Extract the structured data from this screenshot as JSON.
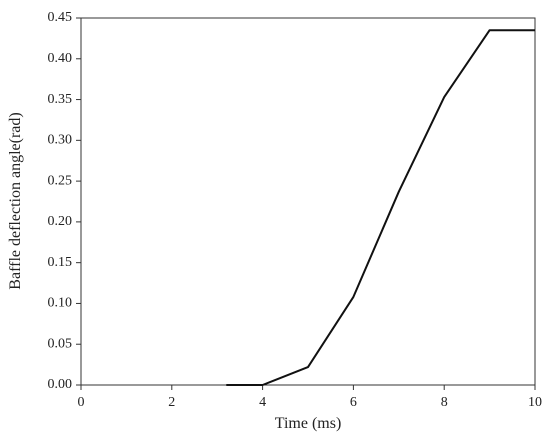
{
  "chart_data": {
    "type": "line",
    "title": "",
    "xlabel": "Time (ms)",
    "ylabel": "Baffle deflection angle(rad)",
    "xlim": [
      0,
      10
    ],
    "ylim": [
      0,
      0.45
    ],
    "xticks": [
      "0",
      "2",
      "4",
      "6",
      "8",
      "10"
    ],
    "yticks": [
      "0.00",
      "0.05",
      "0.10",
      "0.15",
      "0.20",
      "0.25",
      "0.30",
      "0.35",
      "0.40",
      "0.45"
    ],
    "grid": false,
    "legend": "none",
    "series": [
      {
        "x": [
          3.2,
          4.0,
          5.0,
          6.0,
          7.0,
          8.0,
          9.0,
          10.0
        ],
        "y": [
          0.0,
          0.0,
          0.022,
          0.108,
          0.237,
          0.353,
          0.435,
          0.435
        ],
        "color": "#111111"
      }
    ]
  }
}
